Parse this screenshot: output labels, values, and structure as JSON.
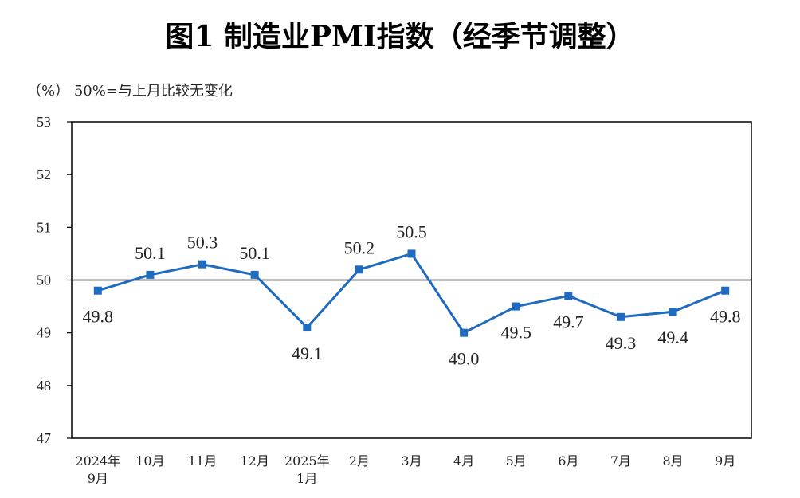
{
  "chart_data": {
    "type": "line",
    "title": "图1  制造业PMI指数（经季节调整）",
    "unit_note": "（%）  50%=与上月比较无变化",
    "categories": [
      [
        "2024年",
        "9月"
      ],
      [
        "10月"
      ],
      [
        "11月"
      ],
      [
        "12月"
      ],
      [
        "2025年",
        "1月"
      ],
      [
        "2月"
      ],
      [
        "3月"
      ],
      [
        "4月"
      ],
      [
        "5月"
      ],
      [
        "6月"
      ],
      [
        "7月"
      ],
      [
        "8月"
      ],
      [
        "9月"
      ]
    ],
    "values": [
      49.8,
      50.1,
      50.3,
      50.1,
      49.1,
      50.2,
      50.5,
      49.0,
      49.5,
      49.7,
      49.3,
      49.4,
      49.8
    ],
    "data_labels": [
      "49.8",
      "50.1",
      "50.3",
      "50.1",
      "49.1",
      "50.2",
      "50.5",
      "49.0",
      "49.5",
      "49.7",
      "49.3",
      "49.4",
      "49.8"
    ],
    "label_position": [
      "below",
      "above",
      "above",
      "above",
      "below",
      "above",
      "above",
      "below",
      "below",
      "below",
      "below",
      "below",
      "below"
    ],
    "ylim": [
      47,
      53
    ],
    "yticks": [
      "47",
      "48",
      "49",
      "50",
      "51",
      "52",
      "53"
    ],
    "reference_line": 50,
    "grid": false,
    "line_color": "#1f6bbf",
    "marker": "square"
  }
}
